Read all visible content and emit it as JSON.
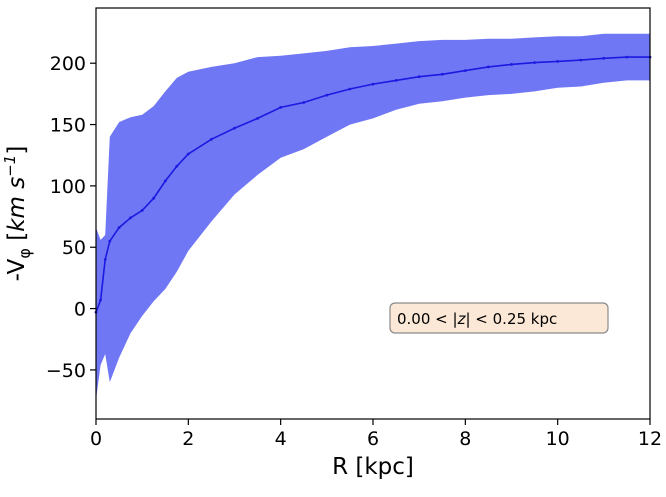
{
  "chart_data": {
    "type": "area",
    "xlabel": "R [kpc]",
    "ylabel": {
      "prefix": "-V",
      "subscript": "φ",
      "units_open": " [",
      "units_main": "km s",
      "units_exp": "−1",
      "units_close": "]"
    },
    "xlim": [
      0,
      12
    ],
    "ylim": [
      -90,
      245
    ],
    "xticks": [
      0,
      2,
      4,
      6,
      8,
      10,
      12
    ],
    "yticks": [
      -50,
      0,
      50,
      100,
      150,
      200
    ],
    "ytick_labels": [
      "−50",
      "0",
      "50",
      "100",
      "150",
      "200"
    ],
    "grid": false,
    "annotation": {
      "parts": [
        "0.00 ",
        "< ",
        "|",
        "z",
        "|",
        "  ",
        "< 0.25 kpc"
      ],
      "background": "#fbe8d6",
      "border": "#8a8a8a"
    },
    "colors": {
      "band": "#7077f5",
      "line": "#1a1ae0"
    },
    "series": [
      {
        "x": [
          0.0,
          0.1,
          0.2,
          0.3,
          0.5,
          0.75,
          1.0,
          1.25,
          1.5,
          1.75,
          2.0,
          2.5,
          3.0,
          3.5,
          4.0,
          4.5,
          5.0,
          5.5,
          6.0,
          6.5,
          7.0,
          7.5,
          8.0,
          8.5,
          9.0,
          9.5,
          10.0,
          10.5,
          11.0,
          11.5,
          12.0
        ],
        "y": [
          -3,
          7,
          40,
          55,
          66,
          74,
          80,
          90,
          104,
          116,
          126,
          138,
          147,
          155,
          164,
          168,
          174,
          179,
          183,
          186,
          189,
          191,
          194,
          197,
          199,
          200.5,
          201.5,
          202.5,
          204,
          205,
          205
        ],
        "y_hi": [
          66,
          56,
          60,
          140,
          152,
          156,
          158,
          165,
          177,
          188,
          193,
          197,
          200,
          205,
          206,
          208,
          210,
          213,
          214,
          216,
          218,
          219,
          219,
          220,
          220,
          221,
          222,
          222,
          224,
          224,
          224
        ],
        "y_lo": [
          -74,
          -46,
          -37,
          -60,
          -40,
          -20,
          -6,
          6,
          16,
          30,
          47,
          71,
          93,
          109,
          123,
          130,
          140,
          150,
          155,
          162,
          167,
          169,
          172,
          174,
          175,
          177,
          180,
          181,
          184,
          186,
          186
        ]
      }
    ]
  }
}
